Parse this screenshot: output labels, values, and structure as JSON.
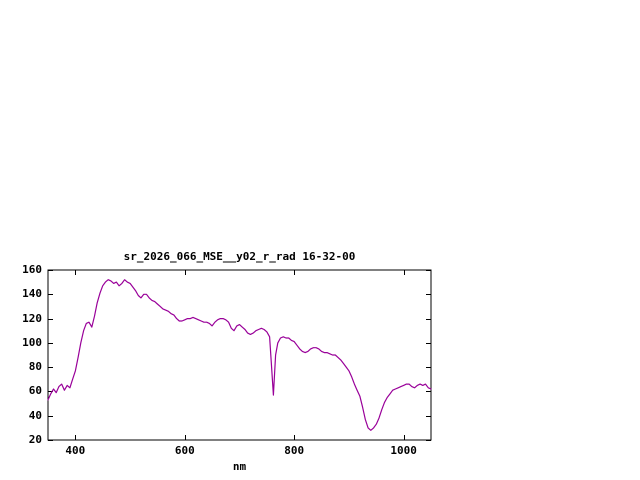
{
  "window": {
    "background": "#ffffff"
  },
  "chart_data": {
    "type": "line",
    "title": "sr_2026_066_MSE__y02_r_rad 16-32-00",
    "xlabel": "nm",
    "ylabel": "",
    "xlim": [
      350,
      1050
    ],
    "ylim": [
      20,
      160
    ],
    "xticks": [
      400,
      600,
      800,
      1000
    ],
    "yticks": [
      20,
      40,
      60,
      80,
      100,
      120,
      140,
      160
    ],
    "grid": false,
    "legend": "none",
    "line_color": "#990099",
    "axis_color": "#000000",
    "series": [
      {
        "name": "sr_2026_066_MSE__y02_r_rad",
        "points": [
          [
            350,
            53
          ],
          [
            355,
            58
          ],
          [
            360,
            62
          ],
          [
            365,
            59
          ],
          [
            370,
            64
          ],
          [
            375,
            66
          ],
          [
            380,
            61
          ],
          [
            385,
            65
          ],
          [
            390,
            63
          ],
          [
            395,
            70
          ],
          [
            400,
            77
          ],
          [
            405,
            88
          ],
          [
            410,
            100
          ],
          [
            415,
            110
          ],
          [
            420,
            116
          ],
          [
            425,
            117
          ],
          [
            430,
            113
          ],
          [
            435,
            122
          ],
          [
            440,
            133
          ],
          [
            445,
            141
          ],
          [
            450,
            147
          ],
          [
            455,
            150
          ],
          [
            460,
            152
          ],
          [
            465,
            151
          ],
          [
            470,
            149
          ],
          [
            475,
            150
          ],
          [
            480,
            147
          ],
          [
            485,
            149
          ],
          [
            490,
            152
          ],
          [
            495,
            150
          ],
          [
            500,
            149
          ],
          [
            505,
            146
          ],
          [
            510,
            143
          ],
          [
            515,
            139
          ],
          [
            520,
            137
          ],
          [
            525,
            140
          ],
          [
            530,
            140
          ],
          [
            535,
            137
          ],
          [
            540,
            135
          ],
          [
            545,
            134
          ],
          [
            550,
            132
          ],
          [
            555,
            130
          ],
          [
            560,
            128
          ],
          [
            565,
            127
          ],
          [
            570,
            126
          ],
          [
            575,
            124
          ],
          [
            580,
            123
          ],
          [
            585,
            120
          ],
          [
            590,
            118
          ],
          [
            595,
            118
          ],
          [
            600,
            119
          ],
          [
            605,
            120
          ],
          [
            610,
            120
          ],
          [
            615,
            121
          ],
          [
            620,
            120
          ],
          [
            625,
            119
          ],
          [
            630,
            118
          ],
          [
            635,
            117
          ],
          [
            640,
            117
          ],
          [
            645,
            116
          ],
          [
            650,
            114
          ],
          [
            655,
            117
          ],
          [
            660,
            119
          ],
          [
            665,
            120
          ],
          [
            670,
            120
          ],
          [
            675,
            119
          ],
          [
            680,
            117
          ],
          [
            685,
            112
          ],
          [
            690,
            110
          ],
          [
            695,
            114
          ],
          [
            700,
            115
          ],
          [
            705,
            113
          ],
          [
            710,
            111
          ],
          [
            715,
            108
          ],
          [
            720,
            107
          ],
          [
            725,
            108
          ],
          [
            730,
            110
          ],
          [
            735,
            111
          ],
          [
            740,
            112
          ],
          [
            745,
            111
          ],
          [
            750,
            109
          ],
          [
            755,
            105
          ],
          [
            758,
            85
          ],
          [
            762,
            57
          ],
          [
            766,
            90
          ],
          [
            770,
            100
          ],
          [
            775,
            104
          ],
          [
            780,
            105
          ],
          [
            785,
            104
          ],
          [
            790,
            104
          ],
          [
            795,
            102
          ],
          [
            800,
            101
          ],
          [
            805,
            98
          ],
          [
            810,
            95
          ],
          [
            815,
            93
          ],
          [
            820,
            92
          ],
          [
            825,
            93
          ],
          [
            830,
            95
          ],
          [
            835,
            96
          ],
          [
            840,
            96
          ],
          [
            845,
            95
          ],
          [
            850,
            93
          ],
          [
            855,
            92
          ],
          [
            860,
            92
          ],
          [
            865,
            91
          ],
          [
            870,
            90
          ],
          [
            875,
            90
          ],
          [
            880,
            88
          ],
          [
            885,
            86
          ],
          [
            890,
            83
          ],
          [
            895,
            80
          ],
          [
            900,
            77
          ],
          [
            905,
            72
          ],
          [
            910,
            66
          ],
          [
            915,
            61
          ],
          [
            920,
            56
          ],
          [
            925,
            47
          ],
          [
            930,
            37
          ],
          [
            935,
            30
          ],
          [
            940,
            28
          ],
          [
            945,
            30
          ],
          [
            950,
            33
          ],
          [
            955,
            38
          ],
          [
            960,
            45
          ],
          [
            965,
            51
          ],
          [
            970,
            55
          ],
          [
            975,
            58
          ],
          [
            980,
            61
          ],
          [
            985,
            62
          ],
          [
            990,
            63
          ],
          [
            995,
            64
          ],
          [
            1000,
            65
          ],
          [
            1005,
            66
          ],
          [
            1010,
            66
          ],
          [
            1015,
            64
          ],
          [
            1020,
            63
          ],
          [
            1025,
            65
          ],
          [
            1030,
            66
          ],
          [
            1035,
            65
          ],
          [
            1040,
            66
          ],
          [
            1045,
            63
          ],
          [
            1050,
            62
          ]
        ]
      }
    ]
  }
}
